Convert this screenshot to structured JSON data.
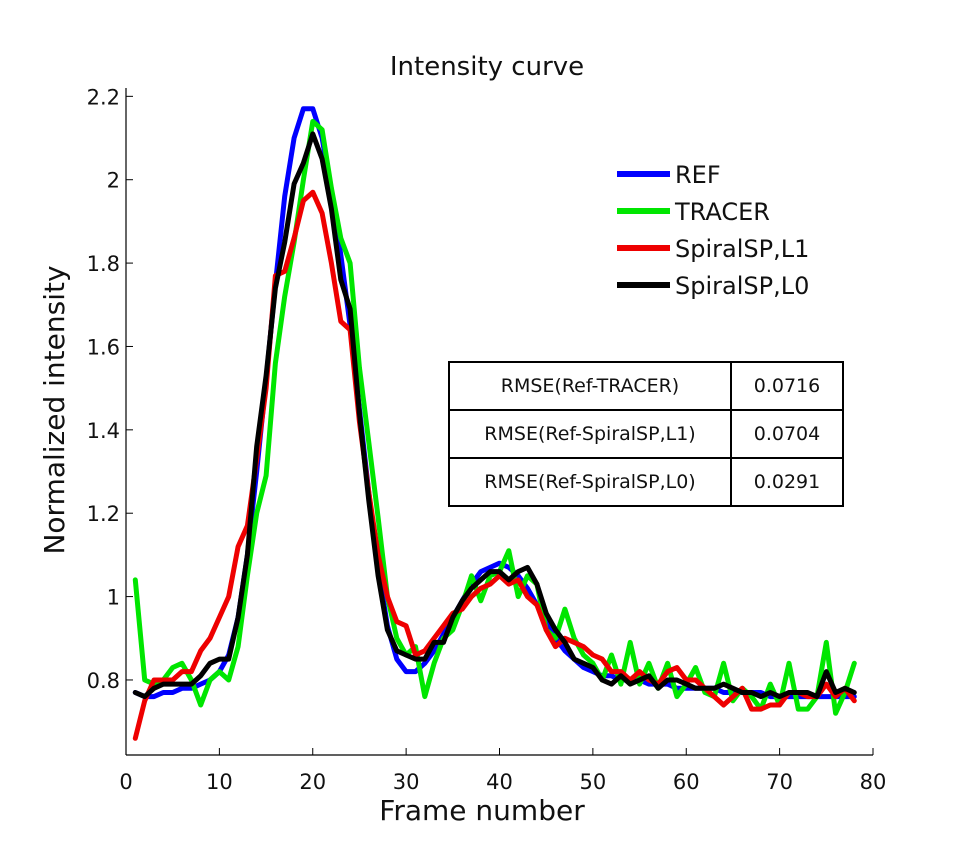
{
  "chart_data": {
    "type": "line",
    "title": "Intensity curve",
    "xlabel": "Frame number",
    "ylabel": "Normalized intensity",
    "xlim": [
      0,
      80
    ],
    "ylim": [
      0.62,
      2.22
    ],
    "xticks": [
      0,
      10,
      20,
      30,
      40,
      50,
      60,
      70,
      80
    ],
    "xtick_labels": [
      "0",
      "10",
      "20",
      "30",
      "40",
      "50",
      "60",
      "70",
      "80"
    ],
    "yticks": [
      0.8,
      1.0,
      1.2,
      1.4,
      1.6,
      1.8,
      2.0,
      2.2
    ],
    "ytick_labels": [
      "0.8",
      "1",
      "1.2",
      "1.4",
      "1.6",
      "1.8",
      "2",
      "2.2"
    ],
    "grid": false,
    "legend_position": "top-right",
    "x": [
      1,
      2,
      3,
      4,
      5,
      6,
      7,
      8,
      9,
      10,
      11,
      12,
      13,
      14,
      15,
      16,
      17,
      18,
      19,
      20,
      21,
      22,
      23,
      24,
      25,
      26,
      27,
      28,
      29,
      30,
      31,
      32,
      33,
      34,
      35,
      36,
      37,
      38,
      39,
      40,
      41,
      42,
      43,
      44,
      45,
      46,
      47,
      48,
      49,
      50,
      51,
      52,
      53,
      54,
      55,
      56,
      57,
      58,
      59,
      60,
      61,
      62,
      63,
      64,
      65,
      66,
      67,
      68,
      69,
      70,
      71,
      72,
      73,
      74,
      75,
      76,
      77,
      78
    ],
    "series": [
      {
        "name": "REF",
        "color": "#0000ff",
        "values": [
          0.77,
          0.76,
          0.76,
          0.77,
          0.77,
          0.78,
          0.78,
          0.79,
          0.8,
          0.82,
          0.86,
          0.95,
          1.1,
          1.3,
          1.52,
          1.75,
          1.96,
          2.1,
          2.17,
          2.17,
          2.1,
          1.97,
          1.82,
          1.65,
          1.45,
          1.25,
          1.07,
          0.93,
          0.85,
          0.82,
          0.82,
          0.84,
          0.87,
          0.91,
          0.95,
          0.99,
          1.03,
          1.06,
          1.07,
          1.08,
          1.07,
          1.05,
          1.02,
          0.98,
          0.94,
          0.9,
          0.87,
          0.85,
          0.83,
          0.82,
          0.81,
          0.81,
          0.8,
          0.8,
          0.8,
          0.79,
          0.79,
          0.79,
          0.78,
          0.78,
          0.78,
          0.78,
          0.78,
          0.77,
          0.77,
          0.77,
          0.77,
          0.77,
          0.76,
          0.76,
          0.76,
          0.76,
          0.76,
          0.76,
          0.76,
          0.76,
          0.76,
          0.76
        ]
      },
      {
        "name": "TRACER",
        "color": "#00e600",
        "values": [
          1.04,
          0.8,
          0.79,
          0.8,
          0.83,
          0.84,
          0.8,
          0.74,
          0.8,
          0.82,
          0.8,
          0.88,
          1.05,
          1.2,
          1.29,
          1.56,
          1.72,
          1.85,
          2.0,
          2.14,
          2.12,
          1.98,
          1.86,
          1.8,
          1.55,
          1.37,
          1.19,
          1.0,
          0.9,
          0.86,
          0.88,
          0.76,
          0.84,
          0.9,
          0.92,
          0.98,
          1.05,
          0.99,
          1.05,
          1.06,
          1.11,
          1.0,
          1.05,
          1.03,
          0.92,
          0.9,
          0.97,
          0.9,
          0.86,
          0.84,
          0.8,
          0.86,
          0.79,
          0.89,
          0.79,
          0.84,
          0.78,
          0.84,
          0.76,
          0.79,
          0.83,
          0.77,
          0.76,
          0.84,
          0.75,
          0.78,
          0.76,
          0.73,
          0.79,
          0.74,
          0.84,
          0.73,
          0.73,
          0.76,
          0.89,
          0.72,
          0.77,
          0.84
        ]
      },
      {
        "name": "SpiralSP,L1",
        "color": "#ee0000",
        "values": [
          0.66,
          0.75,
          0.8,
          0.8,
          0.8,
          0.82,
          0.82,
          0.87,
          0.9,
          0.95,
          1.0,
          1.12,
          1.17,
          1.33,
          1.5,
          1.77,
          1.78,
          1.86,
          1.95,
          1.97,
          1.92,
          1.8,
          1.66,
          1.64,
          1.42,
          1.25,
          1.1,
          1.0,
          0.94,
          0.93,
          0.86,
          0.87,
          0.9,
          0.93,
          0.96,
          0.97,
          1.0,
          1.02,
          1.03,
          1.05,
          1.03,
          1.04,
          1.0,
          0.98,
          0.92,
          0.88,
          0.9,
          0.89,
          0.88,
          0.86,
          0.85,
          0.82,
          0.82,
          0.8,
          0.82,
          0.8,
          0.79,
          0.82,
          0.83,
          0.8,
          0.8,
          0.78,
          0.76,
          0.74,
          0.76,
          0.78,
          0.73,
          0.73,
          0.74,
          0.74,
          0.77,
          0.77,
          0.76,
          0.76,
          0.79,
          0.76,
          0.78,
          0.75
        ]
      },
      {
        "name": "SpiralSP,L0",
        "color": "#000000",
        "values": [
          0.77,
          0.76,
          0.78,
          0.79,
          0.79,
          0.79,
          0.79,
          0.81,
          0.84,
          0.85,
          0.85,
          0.95,
          1.1,
          1.36,
          1.53,
          1.74,
          1.85,
          1.99,
          2.04,
          2.11,
          2.05,
          1.93,
          1.76,
          1.69,
          1.44,
          1.23,
          1.05,
          0.92,
          0.87,
          0.86,
          0.85,
          0.85,
          0.89,
          0.89,
          0.95,
          0.99,
          1.02,
          1.04,
          1.06,
          1.06,
          1.04,
          1.06,
          1.07,
          1.03,
          0.96,
          0.92,
          0.89,
          0.85,
          0.84,
          0.83,
          0.8,
          0.79,
          0.81,
          0.79,
          0.8,
          0.81,
          0.78,
          0.8,
          0.8,
          0.79,
          0.78,
          0.78,
          0.78,
          0.79,
          0.78,
          0.77,
          0.77,
          0.76,
          0.77,
          0.76,
          0.77,
          0.77,
          0.77,
          0.76,
          0.82,
          0.77,
          0.78,
          0.77
        ]
      }
    ],
    "table": [
      {
        "label": "RMSE(Ref-TRACER)",
        "value": "0.0716"
      },
      {
        "label": "RMSE(Ref-SpiralSP,L1)",
        "value": "0.0704"
      },
      {
        "label": "RMSE(Ref-SpiralSP,L0)",
        "value": "0.0291"
      }
    ]
  }
}
